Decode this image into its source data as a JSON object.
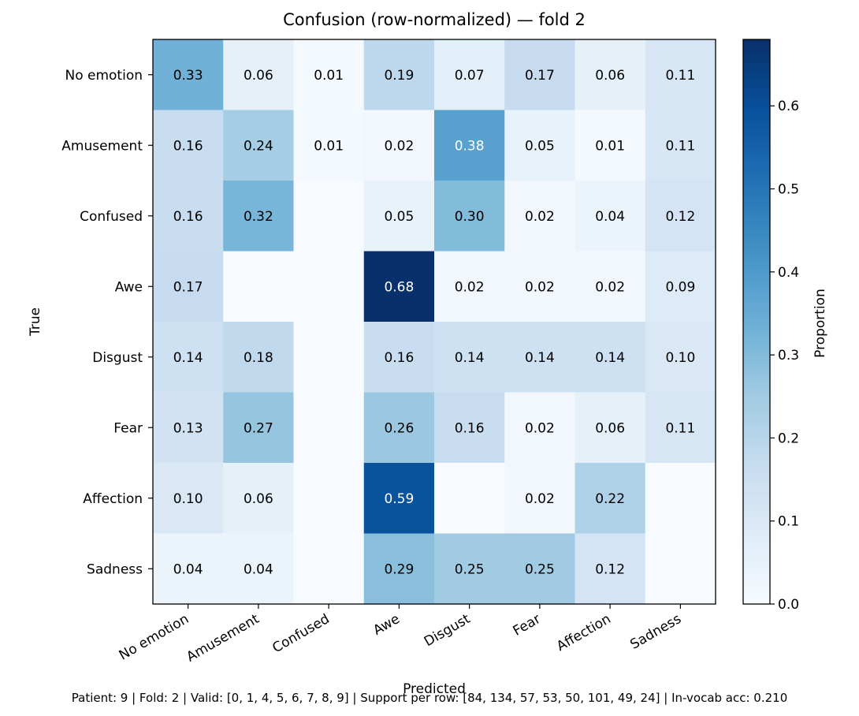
{
  "chart_data": {
    "type": "heatmap",
    "title": "Confusion (row-normalized) — fold 2",
    "xlabel": "Predicted",
    "ylabel": "True",
    "x_categories": [
      "No emotion",
      "Amusement",
      "Confused",
      "Awe",
      "Disgust",
      "Fear",
      "Affection",
      "Sadness"
    ],
    "y_categories": [
      "No emotion",
      "Amusement",
      "Confused",
      "Awe",
      "Disgust",
      "Fear",
      "Affection",
      "Sadness"
    ],
    "values": [
      [
        0.33,
        0.06,
        0.01,
        0.19,
        0.07,
        0.17,
        0.06,
        0.11
      ],
      [
        0.16,
        0.24,
        0.01,
        0.02,
        0.38,
        0.05,
        0.01,
        0.11
      ],
      [
        0.16,
        0.32,
        0.0,
        0.05,
        0.3,
        0.02,
        0.04,
        0.12
      ],
      [
        0.17,
        0.0,
        0.0,
        0.68,
        0.02,
        0.02,
        0.02,
        0.09
      ],
      [
        0.14,
        0.18,
        0.0,
        0.16,
        0.14,
        0.14,
        0.14,
        0.1
      ],
      [
        0.13,
        0.27,
        0.0,
        0.26,
        0.16,
        0.02,
        0.06,
        0.11
      ],
      [
        0.1,
        0.06,
        0.0,
        0.59,
        0.0,
        0.02,
        0.22,
        0.0
      ],
      [
        0.04,
        0.04,
        0.0,
        0.29,
        0.25,
        0.25,
        0.12,
        0.0
      ]
    ],
    "annotation_format": "2 decimals; zero cells unlabeled",
    "colorbar": {
      "label": "Proportion",
      "colormap": "Blues",
      "range": [
        0.0,
        0.68
      ],
      "ticks": [
        "0.0",
        "0.1",
        "0.2",
        "0.3",
        "0.4",
        "0.5",
        "0.6"
      ]
    },
    "grid": false,
    "legend": "colorbar right"
  },
  "footer": "Patient: 9 | Fold: 2 | Valid: [0, 1, 4, 5, 6, 7, 8, 9] | Support per row: [84, 134, 57, 53, 50, 101, 49, 24] | In-vocab acc: 0.210"
}
